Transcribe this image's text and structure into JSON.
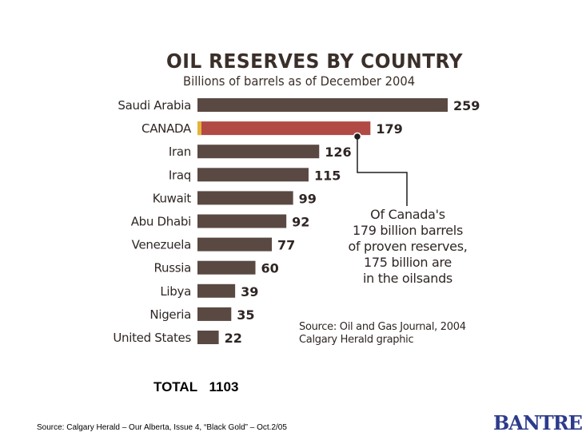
{
  "chart_data": {
    "type": "bar",
    "orientation": "horizontal",
    "title": "OIL RESERVES BY COUNTRY",
    "subtitle": "Billions of barrels as of December 2004",
    "categories": [
      "Saudi Arabia",
      "CANADA",
      "Iran",
      "Iraq",
      "Kuwait",
      "Abu Dhabi",
      "Venezuela",
      "Russia",
      "Libya",
      "Nigeria",
      "United States"
    ],
    "values": [
      259,
      179,
      126,
      115,
      99,
      92,
      77,
      60,
      39,
      35,
      22
    ],
    "highlight": "CANADA",
    "colors": {
      "bar": "#5a4942",
      "highlight": "#b14a45",
      "highlight_cap": "#e6b23a"
    },
    "annotation": "Of Canada's 179 billion barrels of proven reserves, 175 billion are in the oilsands",
    "source": "Source: Oil and Gas Journal, 2004",
    "credit": "Calgary Herald graphic"
  },
  "total_label": "TOTAL",
  "total_value": "1103",
  "footer": "Source: Calgary Herald – Our Alberta, Issue 4, “Black Gold” – Oct.2/05",
  "logo": {
    "text": "BANTREL",
    "color": "#2d3b8c"
  }
}
